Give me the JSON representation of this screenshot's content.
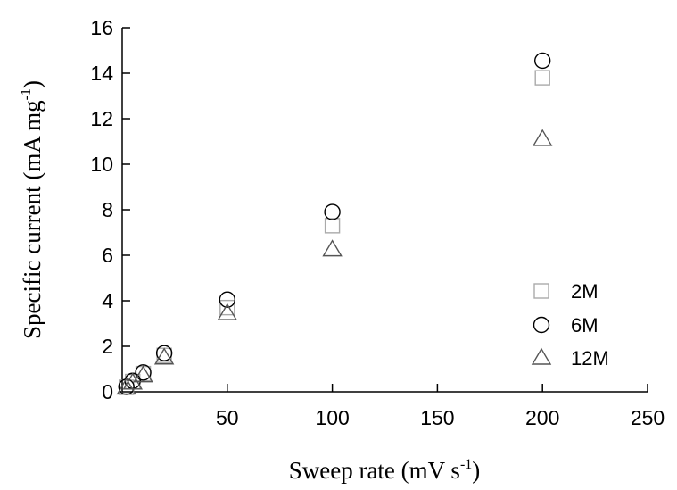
{
  "chart_data": {
    "type": "scatter",
    "xlabel": "Sweep rate (mV s",
    "xlabel_sup": "-1",
    "xlabel_end": ")",
    "ylabel": "Specific current (mA mg",
    "ylabel_sup": "-1",
    "ylabel_end": ")",
    "xlim": [
      0,
      250
    ],
    "ylim": [
      0,
      16
    ],
    "xticks": [
      50,
      100,
      150,
      200,
      250
    ],
    "xtick_labels": [
      "50",
      "100",
      "150",
      "200",
      "250"
    ],
    "yticks": [
      0,
      2,
      4,
      6,
      8,
      10,
      12,
      14,
      16
    ],
    "ytick_labels": [
      "0",
      "2",
      "4",
      "6",
      "8",
      "10",
      "12",
      "14",
      "16"
    ],
    "grid": false,
    "legend_position": "bottom-right",
    "series": [
      {
        "name": "2M",
        "marker": "square",
        "color": "#aaaaaa",
        "x": [
          2,
          5,
          10,
          20,
          50,
          100,
          200
        ],
        "y": [
          0.2,
          0.45,
          0.8,
          1.6,
          3.7,
          7.3,
          13.8
        ]
      },
      {
        "name": "6M",
        "marker": "circle",
        "color": "#000000",
        "x": [
          2,
          5,
          10,
          20,
          50,
          100,
          200
        ],
        "y": [
          0.22,
          0.48,
          0.85,
          1.7,
          4.05,
          7.9,
          14.55
        ]
      },
      {
        "name": "12M",
        "marker": "triangle",
        "color": "#555555",
        "x": [
          2,
          5,
          10,
          20,
          50,
          100,
          200
        ],
        "y": [
          0.18,
          0.4,
          0.72,
          1.5,
          3.45,
          6.25,
          11.1
        ]
      }
    ]
  }
}
